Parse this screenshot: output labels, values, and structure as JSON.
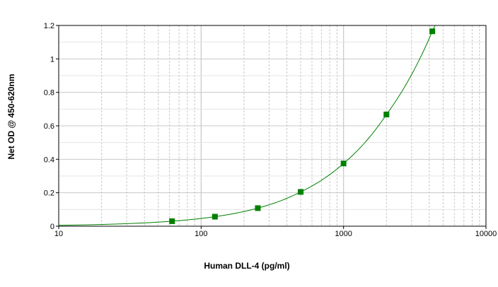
{
  "chart_data": {
    "type": "scatter",
    "title": "",
    "xlabel": "Human   DLL-4 (pg/ml)",
    "ylabel": "Net OD @ 450-620nm",
    "x_scale": "log",
    "xlim": [
      10,
      10000
    ],
    "ylim": [
      0,
      1.2
    ],
    "grid": true,
    "x_ticks": [
      "10",
      "100",
      "1000",
      "10000"
    ],
    "y_ticks": [
      "0",
      "0.2",
      "0.4",
      "0.6",
      "0.8",
      "1",
      "1.2"
    ],
    "colors": {
      "points": "#008000",
      "curve": "#008000",
      "grid": "#c8c8c8",
      "axis": "#000000"
    },
    "series": [
      {
        "x": [
          62.5,
          125,
          250,
          500,
          1000,
          2000,
          4200
        ],
        "y": [
          0.03,
          0.057,
          0.108,
          0.205,
          0.375,
          0.668,
          1.165
        ],
        "fit_curve": true
      }
    ]
  }
}
